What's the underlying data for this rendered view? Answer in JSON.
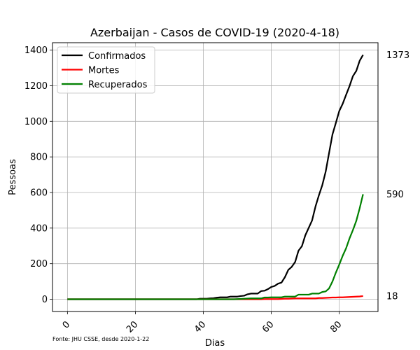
{
  "chart_data": {
    "type": "line",
    "title": "Azerbaijan - Casos de COVID-19 (2020-4-18)",
    "xlabel": "Dias",
    "ylabel": "Pessoas",
    "xlim": [
      -4.4,
      91.4
    ],
    "ylim": [
      -68.7,
      1441.7
    ],
    "xticks": [
      0,
      20,
      40,
      60,
      80
    ],
    "yticks": [
      0,
      200,
      400,
      600,
      800,
      1000,
      1200,
      1400
    ],
    "grid": true,
    "legend_position": "top-left",
    "source_note": "Fonte: JHU CSSE, desde 2020-1-22",
    "series": [
      {
        "name": "Confirmados",
        "color": "#000000",
        "end_label": "1373",
        "points": [
          [
            0,
            0
          ],
          [
            38,
            0
          ],
          [
            39,
            3
          ],
          [
            40,
            3
          ],
          [
            41,
            3
          ],
          [
            42,
            5
          ],
          [
            43,
            6
          ],
          [
            44,
            9
          ],
          [
            45,
            11
          ],
          [
            46,
            11
          ],
          [
            47,
            11
          ],
          [
            48,
            15
          ],
          [
            49,
            15
          ],
          [
            50,
            15
          ],
          [
            51,
            18
          ],
          [
            52,
            20
          ],
          [
            53,
            28
          ],
          [
            54,
            32
          ],
          [
            55,
            32
          ],
          [
            56,
            32
          ],
          [
            57,
            46
          ],
          [
            58,
            48
          ],
          [
            59,
            57
          ],
          [
            60,
            69
          ],
          [
            61,
            75
          ],
          [
            62,
            88
          ],
          [
            63,
            94
          ],
          [
            64,
            124
          ],
          [
            65,
            165
          ],
          [
            66,
            182
          ],
          [
            67,
            209
          ],
          [
            68,
            273
          ],
          [
            69,
            298
          ],
          [
            70,
            359
          ],
          [
            71,
            401
          ],
          [
            72,
            443
          ],
          [
            73,
            521
          ],
          [
            74,
            584
          ],
          [
            75,
            641
          ],
          [
            76,
            717
          ],
          [
            77,
            822
          ],
          [
            78,
            926
          ],
          [
            79,
            991
          ],
          [
            80,
            1058
          ],
          [
            81,
            1098
          ],
          [
            82,
            1148
          ],
          [
            83,
            1197
          ],
          [
            84,
            1253
          ],
          [
            85,
            1283
          ],
          [
            86,
            1340
          ],
          [
            87,
            1373
          ]
        ]
      },
      {
        "name": "Mortes",
        "color": "#ff0000",
        "end_label": "18",
        "points": [
          [
            0,
            0
          ],
          [
            57,
            0
          ],
          [
            58,
            1
          ],
          [
            60,
            1
          ],
          [
            61,
            1
          ],
          [
            62,
            1
          ],
          [
            63,
            2
          ],
          [
            64,
            3
          ],
          [
            65,
            3
          ],
          [
            66,
            4
          ],
          [
            67,
            5
          ],
          [
            68,
            5
          ],
          [
            69,
            5
          ],
          [
            70,
            5
          ],
          [
            71,
            5
          ],
          [
            72,
            5
          ],
          [
            73,
            5
          ],
          [
            74,
            7
          ],
          [
            75,
            7
          ],
          [
            76,
            8
          ],
          [
            77,
            9
          ],
          [
            78,
            10
          ],
          [
            79,
            10
          ],
          [
            80,
            11
          ],
          [
            81,
            11
          ],
          [
            82,
            12
          ],
          [
            83,
            13
          ],
          [
            84,
            14
          ],
          [
            85,
            15
          ],
          [
            86,
            16
          ],
          [
            87,
            18
          ]
        ]
      },
      {
        "name": "Recuperados",
        "color": "#008000",
        "end_label": "590",
        "points": [
          [
            0,
            0
          ],
          [
            49,
            0
          ],
          [
            50,
            1
          ],
          [
            51,
            2
          ],
          [
            52,
            3
          ],
          [
            53,
            4
          ],
          [
            54,
            5
          ],
          [
            55,
            5
          ],
          [
            56,
            5
          ],
          [
            57,
            5
          ],
          [
            58,
            10
          ],
          [
            59,
            10
          ],
          [
            60,
            11
          ],
          [
            61,
            11
          ],
          [
            62,
            11
          ],
          [
            63,
            11
          ],
          [
            64,
            15
          ],
          [
            65,
            15
          ],
          [
            66,
            15
          ],
          [
            67,
            15
          ],
          [
            68,
            26
          ],
          [
            69,
            26
          ],
          [
            70,
            26
          ],
          [
            71,
            26
          ],
          [
            72,
            32
          ],
          [
            73,
            32
          ],
          [
            74,
            32
          ],
          [
            75,
            41
          ],
          [
            76,
            44
          ],
          [
            77,
            61
          ],
          [
            78,
            100
          ],
          [
            79,
            150
          ],
          [
            80,
            195
          ],
          [
            81,
            244
          ],
          [
            82,
            286
          ],
          [
            83,
            341
          ],
          [
            84,
            388
          ],
          [
            85,
            440
          ],
          [
            86,
            511
          ],
          [
            87,
            590
          ]
        ]
      }
    ]
  }
}
